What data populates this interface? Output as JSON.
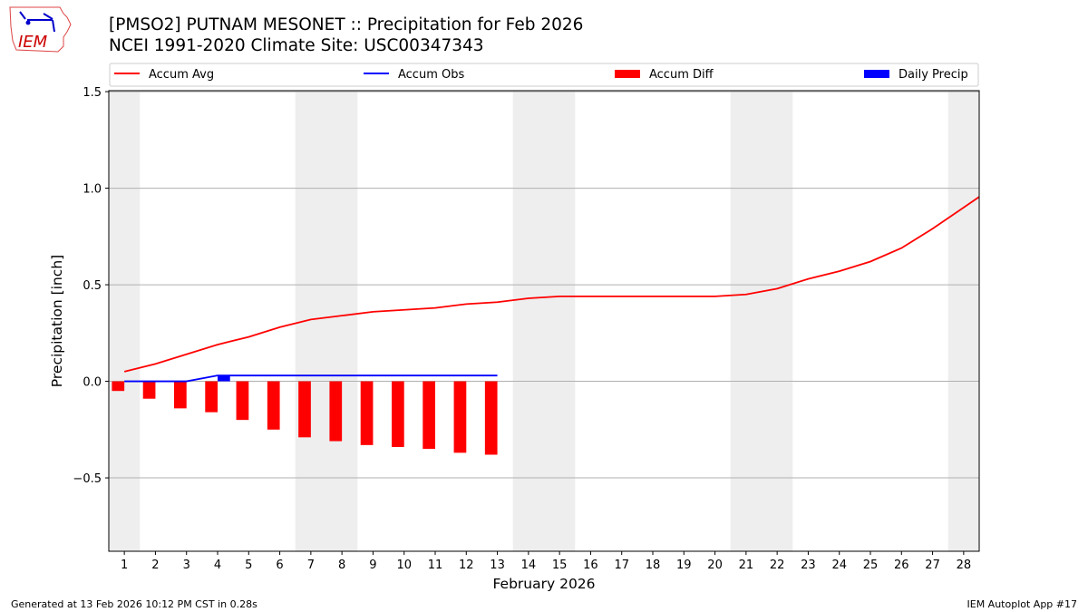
{
  "header": {
    "title": "[PMSO2] PUTNAM MESONET :: Precipitation for Feb 2026",
    "subtitle": "NCEI 1991-2020 Climate Site: USC00347343",
    "logo_text": "IEM"
  },
  "footer": {
    "left": "Generated at 13 Feb 2026 10:12 PM CST in 0.28s",
    "right": "IEM Autoplot App #17"
  },
  "chart_data": {
    "type": "line",
    "xlabel": "February 2026",
    "ylabel": "Precipitation [inch]",
    "xlim": [
      0.5,
      28.5
    ],
    "ylim": [
      -0.88,
      1.505
    ],
    "xticks": [
      "1",
      "2",
      "3",
      "4",
      "5",
      "6",
      "7",
      "8",
      "9",
      "10",
      "11",
      "12",
      "13",
      "14",
      "15",
      "16",
      "17",
      "18",
      "19",
      "20",
      "21",
      "22",
      "23",
      "24",
      "25",
      "26",
      "27",
      "28"
    ],
    "yticks": [
      {
        "v": -0.5,
        "label": "−0.5"
      },
      {
        "v": 0.0,
        "label": "0.0"
      },
      {
        "v": 0.5,
        "label": "0.5"
      },
      {
        "v": 1.0,
        "label": "1.0"
      },
      {
        "v": 1.5,
        "label": "1.5"
      }
    ],
    "grid": "horizontal",
    "legend_position": "top",
    "weekend_shading": [
      [
        0.5,
        1.5
      ],
      [
        6.5,
        8.5
      ],
      [
        13.5,
        15.5
      ],
      [
        20.5,
        22.5
      ],
      [
        27.5,
        28.5
      ]
    ],
    "colors": {
      "avg": "#ff0000",
      "obs": "#0000ff",
      "diff": "#ff0000",
      "daily": "#0000ff",
      "shade": "#eeeeee",
      "grid": "#b0b0b0"
    },
    "legend": [
      "Accum Avg",
      "Accum Obs",
      "Accum Diff",
      "Daily Precip"
    ],
    "accum_avg": {
      "days": [
        1,
        2,
        3,
        4,
        5,
        6,
        7,
        8,
        9,
        10,
        11,
        12,
        13,
        14,
        15,
        16,
        17,
        18,
        19,
        20,
        21,
        22,
        23,
        24,
        25,
        26,
        27,
        28,
        29
      ],
      "values": [
        0.05,
        0.09,
        0.14,
        0.19,
        0.23,
        0.28,
        0.32,
        0.34,
        0.36,
        0.37,
        0.38,
        0.4,
        0.41,
        0.43,
        0.44,
        0.44,
        0.44,
        0.44,
        0.44,
        0.44,
        0.45,
        0.48,
        0.53,
        0.57,
        0.62,
        0.69,
        0.79,
        0.9,
        1.01
      ]
    },
    "accum_obs": {
      "days": [
        1,
        2,
        3,
        4,
        5,
        6,
        7,
        8,
        9,
        10,
        11,
        12,
        13
      ],
      "values": [
        0.0,
        0.0,
        0.0,
        0.03,
        0.03,
        0.03,
        0.03,
        0.03,
        0.03,
        0.03,
        0.03,
        0.03,
        0.03
      ]
    },
    "accum_diff": {
      "days": [
        1,
        2,
        3,
        4,
        5,
        6,
        7,
        8,
        9,
        10,
        11,
        12,
        13
      ],
      "values": [
        -0.05,
        -0.09,
        -0.14,
        -0.16,
        -0.2,
        -0.25,
        -0.29,
        -0.31,
        -0.33,
        -0.34,
        -0.35,
        -0.37,
        -0.38
      ]
    },
    "daily_precip": {
      "days": [
        4
      ],
      "values": [
        0.03
      ]
    }
  }
}
